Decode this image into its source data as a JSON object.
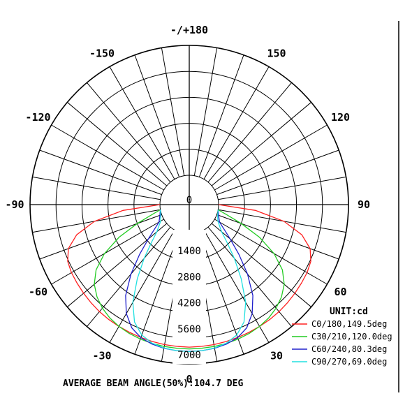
{
  "chart_data": {
    "type": "polar",
    "unit": "UNIT:cd",
    "footer": "AVERAGE BEAM ANGLE(50%):104.7 DEG",
    "radial_max": 7000,
    "radial_ticks": [
      0,
      1400,
      2800,
      4200,
      5600,
      7000
    ],
    "radial_tick_labels": [
      "0",
      "1400",
      "2800",
      "4200",
      "5600",
      "7000"
    ],
    "angle_labels": [
      {
        "angle": 0,
        "text": "0"
      },
      {
        "angle": 30,
        "text": "30"
      },
      {
        "angle": -30,
        "text": "-30"
      },
      {
        "angle": 60,
        "text": "60"
      },
      {
        "angle": -60,
        "text": "-60"
      },
      {
        "angle": 90,
        "text": "90"
      },
      {
        "angle": -90,
        "text": "-90"
      },
      {
        "angle": 120,
        "text": "120"
      },
      {
        "angle": -120,
        "text": "-120"
      },
      {
        "angle": 150,
        "text": "150"
      },
      {
        "angle": -150,
        "text": "-150"
      },
      {
        "angle": 180,
        "text": "-/+180"
      }
    ],
    "series": [
      {
        "name": "C0/180,149.5deg",
        "color": "#ff2020",
        "angles": [
          -90,
          -85,
          -80,
          -75,
          -70,
          -65,
          -60,
          -55,
          -50,
          -45,
          -40,
          -35,
          -30,
          -25,
          -20,
          -15,
          -10,
          -5,
          0,
          5,
          10,
          15,
          20,
          25,
          30,
          35,
          40,
          45,
          50,
          55,
          60,
          65,
          70,
          75,
          80,
          85,
          90
        ],
        "values": [
          0,
          2000,
          3600,
          4700,
          5350,
          5650,
          5750,
          5800,
          5850,
          5900,
          5950,
          5980,
          6000,
          6020,
          6040,
          6060,
          6080,
          6090,
          6100,
          6090,
          6080,
          6060,
          6040,
          6020,
          6000,
          5980,
          5950,
          5900,
          5850,
          5800,
          5750,
          5650,
          5350,
          4700,
          3600,
          2000,
          0
        ]
      },
      {
        "name": "C30/210,120.0deg",
        "color": "#22cc22",
        "angles": [
          -80,
          -75,
          -70,
          -65,
          -60,
          -55,
          -50,
          -45,
          -40,
          -35,
          -30,
          -25,
          -20,
          -15,
          -10,
          -5,
          0,
          5,
          10,
          15,
          20,
          25,
          30,
          35,
          40,
          45,
          50,
          55,
          60,
          65,
          70,
          75,
          80
        ],
        "values": [
          0,
          500,
          1400,
          2600,
          3700,
          4550,
          5100,
          5450,
          5700,
          5880,
          6000,
          6080,
          6130,
          6160,
          6180,
          6190,
          6200,
          6190,
          6180,
          6160,
          6130,
          6080,
          6000,
          5880,
          5700,
          5450,
          5100,
          4550,
          3700,
          2600,
          1400,
          500,
          0
        ]
      },
      {
        "name": "C60/240,80.3deg",
        "color": "#2020cc",
        "angles": [
          -80,
          -70,
          -60,
          -55,
          -50,
          -45,
          -40,
          -35,
          -30,
          -25,
          -20,
          -15,
          -10,
          -5,
          0,
          5,
          10,
          15,
          20,
          25,
          30,
          35,
          40,
          45,
          50,
          55,
          60,
          70,
          80
        ],
        "values": [
          0,
          100,
          300,
          700,
          1300,
          2200,
          3300,
          4400,
          5200,
          5750,
          6050,
          6200,
          6280,
          6320,
          6330,
          6320,
          6280,
          6200,
          6050,
          5750,
          5200,
          4400,
          3300,
          2200,
          1300,
          700,
          300,
          100,
          0
        ]
      },
      {
        "name": "C90/270,69.0deg",
        "color": "#20e0e0",
        "angles": [
          -80,
          -70,
          -60,
          -50,
          -45,
          -40,
          -35,
          -30,
          -25,
          -20,
          -15,
          -10,
          -5,
          0,
          5,
          10,
          15,
          20,
          25,
          30,
          35,
          40,
          45,
          50,
          60,
          70,
          80
        ],
        "values": [
          0,
          50,
          200,
          700,
          1300,
          2200,
          3300,
          4500,
          5400,
          5900,
          6150,
          6270,
          6320,
          6340,
          6320,
          6270,
          6150,
          5900,
          5400,
          4500,
          3300,
          2200,
          1300,
          700,
          200,
          50,
          0
        ]
      }
    ]
  }
}
